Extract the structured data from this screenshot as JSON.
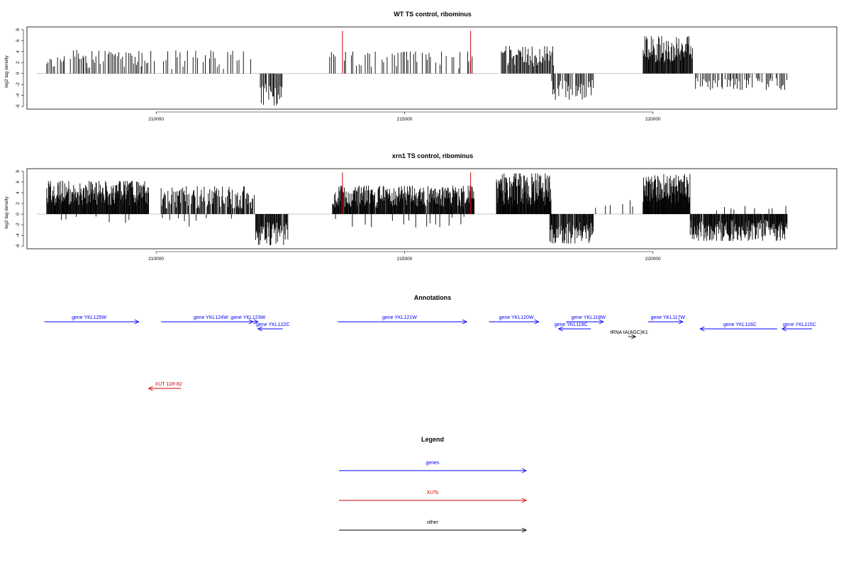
{
  "chart_data": [
    {
      "type": "bar",
      "title": "WT TS control, ribominus",
      "ylabel": "log2 tag density",
      "xlabel": "",
      "xlim": [
        207400,
        223700
      ],
      "ylim": [
        -6.5,
        8.5
      ],
      "xticks": [
        210000,
        215000,
        220000
      ],
      "yticks": [
        -6,
        -4,
        -2,
        0,
        2,
        4,
        6,
        8
      ],
      "baseline_segments": [
        [
          207600,
          212400
        ],
        [
          212550,
          216900
        ],
        [
          216950,
          222700
        ]
      ],
      "red_markers": [
        213750,
        216330
      ],
      "red_marker_height": 7.8,
      "regions": [
        {
          "x0": 207800,
          "x1": 210000,
          "strand": "+",
          "min": 1.0,
          "max": 4.3,
          "step": 30,
          "density": 0.85
        },
        {
          "x0": 210150,
          "x1": 212000,
          "strand": "+",
          "min": 0.8,
          "max": 4.2,
          "step": 40,
          "density": 0.55
        },
        {
          "x0": 212100,
          "x1": 212550,
          "strand": "-",
          "min": 1.5,
          "max": 5.8,
          "step": 20,
          "density": 0.9
        },
        {
          "x0": 213500,
          "x1": 216400,
          "strand": "+",
          "min": 0.8,
          "max": 4.0,
          "step": 35,
          "density": 0.6
        },
        {
          "x0": 216950,
          "x1": 218000,
          "strand": "+",
          "min": 1.2,
          "max": 5.0,
          "step": 18,
          "density": 0.95
        },
        {
          "x0": 217960,
          "x1": 218800,
          "strand": "-",
          "min": 1.2,
          "max": 4.8,
          "step": 20,
          "density": 0.8
        },
        {
          "x0": 219800,
          "x1": 220800,
          "strand": "+",
          "min": 2.0,
          "max": 6.8,
          "step": 12,
          "density": 1.0
        },
        {
          "x0": 220850,
          "x1": 222700,
          "strand": "-",
          "min": 0.8,
          "max": 3.0,
          "step": 25,
          "density": 0.75
        }
      ]
    },
    {
      "type": "bar",
      "title": "xrn1 TS control, ribominus",
      "ylabel": "log2 tag density",
      "xlabel": "",
      "xlim": [
        207400,
        223700
      ],
      "ylim": [
        -6.5,
        8.5
      ],
      "xticks": [
        210000,
        215000,
        220000
      ],
      "yticks": [
        -6,
        -4,
        -2,
        0,
        2,
        4,
        6,
        8
      ],
      "baseline_segments": [
        [
          207600,
          222700
        ]
      ],
      "red_markers": [
        213750,
        216330
      ],
      "red_marker_height": 7.8,
      "regions": [
        {
          "x0": 207800,
          "x1": 209850,
          "strand": "+",
          "min": 1.5,
          "max": 6.2,
          "step": 10,
          "density": 1.0
        },
        {
          "x0": 207850,
          "x1": 209850,
          "strand": "-",
          "min": 0.4,
          "max": 2.0,
          "step": 80,
          "density": 0.3
        },
        {
          "x0": 210100,
          "x1": 212000,
          "strand": "+",
          "min": 1.0,
          "max": 5.2,
          "step": 14,
          "density": 0.85
        },
        {
          "x0": 210100,
          "x1": 212000,
          "strand": "-",
          "min": 0.4,
          "max": 2.5,
          "step": 90,
          "density": 0.3
        },
        {
          "x0": 212000,
          "x1": 212650,
          "strand": "-",
          "min": 1.5,
          "max": 5.8,
          "step": 12,
          "density": 0.95
        },
        {
          "x0": 213550,
          "x1": 216400,
          "strand": "+",
          "min": 1.2,
          "max": 5.3,
          "step": 10,
          "density": 0.95
        },
        {
          "x0": 213600,
          "x1": 216400,
          "strand": "-",
          "min": 0.4,
          "max": 2.5,
          "step": 60,
          "density": 0.35
        },
        {
          "x0": 216850,
          "x1": 217950,
          "strand": "+",
          "min": 1.5,
          "max": 7.6,
          "step": 9,
          "density": 1.0
        },
        {
          "x0": 217900,
          "x1": 218800,
          "strand": "-",
          "min": 1.5,
          "max": 5.5,
          "step": 12,
          "density": 0.95
        },
        {
          "x0": 218800,
          "x1": 219600,
          "strand": "+",
          "min": 0.5,
          "max": 3.5,
          "step": 50,
          "density": 0.4
        },
        {
          "x0": 219800,
          "x1": 220750,
          "strand": "+",
          "min": 2.0,
          "max": 7.5,
          "step": 9,
          "density": 1.0
        },
        {
          "x0": 220750,
          "x1": 222700,
          "strand": "-",
          "min": 1.0,
          "max": 5.0,
          "step": 11,
          "density": 0.95
        },
        {
          "x0": 221000,
          "x1": 222700,
          "strand": "+",
          "min": 0.3,
          "max": 1.5,
          "step": 70,
          "density": 0.3
        }
      ]
    }
  ],
  "annotations": {
    "title": "Annotations",
    "features": [
      {
        "label": "gene YKL125W",
        "kind": "gene",
        "strand": "+",
        "start": 207750,
        "end": 209650,
        "row": 0,
        "label_x": 208650
      },
      {
        "label": "gene YKL124W",
        "kind": "gene",
        "strand": "+",
        "start": 210100,
        "end": 211950,
        "row": 0,
        "label_x": 211100
      },
      {
        "label": "gene YKL123W",
        "kind": "gene",
        "strand": "+",
        "start": 211850,
        "end": 212050,
        "row": 0,
        "label_x": 211850
      },
      {
        "label": "gene YKL122C",
        "kind": "gene",
        "strand": "-",
        "start": 212050,
        "end": 212550,
        "row": 1,
        "label_x": 212350
      },
      {
        "label": "gene YKL121W",
        "kind": "gene",
        "strand": "+",
        "start": 213650,
        "end": 216250,
        "row": 0,
        "label_x": 214900
      },
      {
        "label": "gene YKL120W",
        "kind": "gene",
        "strand": "+",
        "start": 216700,
        "end": 217700,
        "row": 0,
        "label_x": 217250
      },
      {
        "label": "gene YKL118W",
        "kind": "gene",
        "strand": "+",
        "start": 218250,
        "end": 219000,
        "row": 0,
        "label_x": 218700
      },
      {
        "label": "gene YKL119C",
        "kind": "gene",
        "strand": "-",
        "start": 218100,
        "end": 218750,
        "row": 1,
        "label_x": 218350
      },
      {
        "label": "tRNA tA(AGC)K1",
        "kind": "other",
        "strand": "+",
        "start": 219500,
        "end": 219650,
        "row": 2,
        "label_x": 219520
      },
      {
        "label": "gene YKL117W",
        "kind": "gene",
        "strand": "+",
        "start": 219900,
        "end": 220600,
        "row": 0,
        "label_x": 220300
      },
      {
        "label": "gene YKL116C",
        "kind": "gene",
        "strand": "-",
        "start": 220950,
        "end": 222500,
        "row": 1,
        "label_x": 221750
      },
      {
        "label": "gene YKL115C",
        "kind": "gene",
        "strand": "-",
        "start": 222600,
        "end": 223200,
        "row": 1,
        "label_x": 222950
      },
      {
        "label": "XUT 11R-82",
        "kind": "xut",
        "strand": "-",
        "start": 209850,
        "end": 210500,
        "row": 3,
        "label_x": 210250
      }
    ]
  },
  "legend": {
    "title": "Legend",
    "items": [
      {
        "label": "genes",
        "color": "#0000ff"
      },
      {
        "label": "XUTs",
        "color": "#cc0000"
      },
      {
        "label": "other",
        "color": "#000000"
      }
    ]
  },
  "colors": {
    "gene": "#0000ff",
    "xut": "#cc0000",
    "other": "#000000",
    "marker": "#cc0000",
    "baseline": "#b3b3b3"
  }
}
